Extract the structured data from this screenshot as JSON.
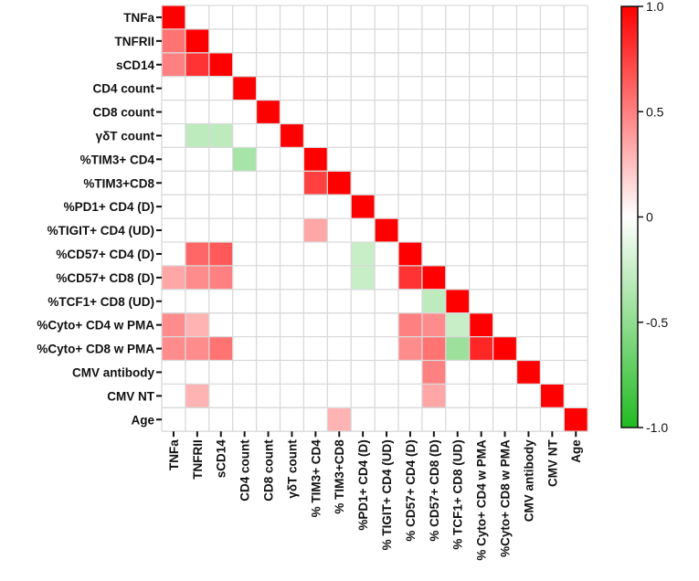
{
  "chart_data": {
    "type": "heatmap",
    "variables": [
      "TNFa",
      "TNFRII",
      "sCD14",
      "CD4 count",
      "CD8 count",
      "γδT count",
      "%TIM3+ CD4",
      "%TIM3+CD8",
      "%PD1+ CD4 (D)",
      "%TIGIT+ CD4 (UD)",
      "%CD57+ CD4 (D)",
      "%CD57+ CD8 (D)",
      "%TCF1+ CD8 (UD)",
      "%Cyto+ CD4 w PMA",
      "%Cyto+ CD8 w PMA",
      "CMV antibody",
      "CMV NT",
      "Age"
    ],
    "x_labels": [
      "TNFa",
      "TNFRII",
      "sCD14",
      "CD4 count",
      "CD8 count",
      "γδT count",
      "% TIM3+ CD4",
      "% TIM3+CD8",
      "%PD1+ CD4 (D)",
      "% TIGIT+ CD4 (UD)",
      "% CD57+ CD4 (D)",
      "% CD57+ CD8 (D)",
      "% TCF1+ CD8 (UD)",
      "% Cyto+ CD4 w PMA",
      "%Cyto+ CD8 w PMA",
      "CMV antibody",
      "CMV NT",
      "Age"
    ],
    "cells": [
      [
        0,
        0,
        1.0
      ],
      [
        1,
        0,
        0.55
      ],
      [
        1,
        1,
        1.0
      ],
      [
        2,
        0,
        0.5
      ],
      [
        2,
        1,
        0.8
      ],
      [
        2,
        2,
        1.0
      ],
      [
        3,
        3,
        1.0
      ],
      [
        4,
        4,
        1.0
      ],
      [
        5,
        1,
        -0.3
      ],
      [
        5,
        2,
        -0.3
      ],
      [
        5,
        5,
        1.0
      ],
      [
        6,
        3,
        -0.4
      ],
      [
        6,
        6,
        1.0
      ],
      [
        7,
        6,
        0.75
      ],
      [
        7,
        7,
        1.0
      ],
      [
        8,
        8,
        1.0
      ],
      [
        9,
        6,
        0.35
      ],
      [
        9,
        9,
        1.0
      ],
      [
        10,
        1,
        0.6
      ],
      [
        10,
        2,
        0.65
      ],
      [
        10,
        8,
        -0.25
      ],
      [
        10,
        10,
        1.0
      ],
      [
        11,
        0,
        0.35
      ],
      [
        11,
        1,
        0.45
      ],
      [
        11,
        2,
        0.5
      ],
      [
        11,
        8,
        -0.25
      ],
      [
        11,
        10,
        0.8
      ],
      [
        11,
        11,
        1.0
      ],
      [
        12,
        11,
        -0.3
      ],
      [
        12,
        12,
        1.0
      ],
      [
        13,
        0,
        0.45
      ],
      [
        13,
        1,
        0.3
      ],
      [
        13,
        10,
        0.5
      ],
      [
        13,
        11,
        0.45
      ],
      [
        13,
        12,
        -0.25
      ],
      [
        13,
        13,
        1.0
      ],
      [
        14,
        0,
        0.45
      ],
      [
        14,
        1,
        0.45
      ],
      [
        14,
        2,
        0.55
      ],
      [
        14,
        10,
        0.45
      ],
      [
        14,
        11,
        0.55
      ],
      [
        14,
        12,
        -0.45
      ],
      [
        14,
        13,
        0.85
      ],
      [
        14,
        14,
        1.0
      ],
      [
        15,
        11,
        0.5
      ],
      [
        15,
        15,
        1.0
      ],
      [
        16,
        1,
        0.3
      ],
      [
        16,
        11,
        0.35
      ],
      [
        16,
        16,
        1.0
      ],
      [
        17,
        7,
        0.3
      ],
      [
        17,
        17,
        1.0
      ]
    ],
    "colorbar": {
      "min": -1.0,
      "max": 1.0,
      "ticks": [
        {
          "value": 1.0,
          "label": "1.0"
        },
        {
          "value": 0.5,
          "label": "0.5"
        },
        {
          "value": 0,
          "label": "0"
        },
        {
          "value": -0.5,
          "label": "-0.5"
        },
        {
          "value": -1.0,
          "label": "-1.0"
        }
      ],
      "colors": {
        "positive": "#ff0000",
        "zero": "#ffffff",
        "negative": "#22bb22"
      }
    },
    "grid": true
  }
}
